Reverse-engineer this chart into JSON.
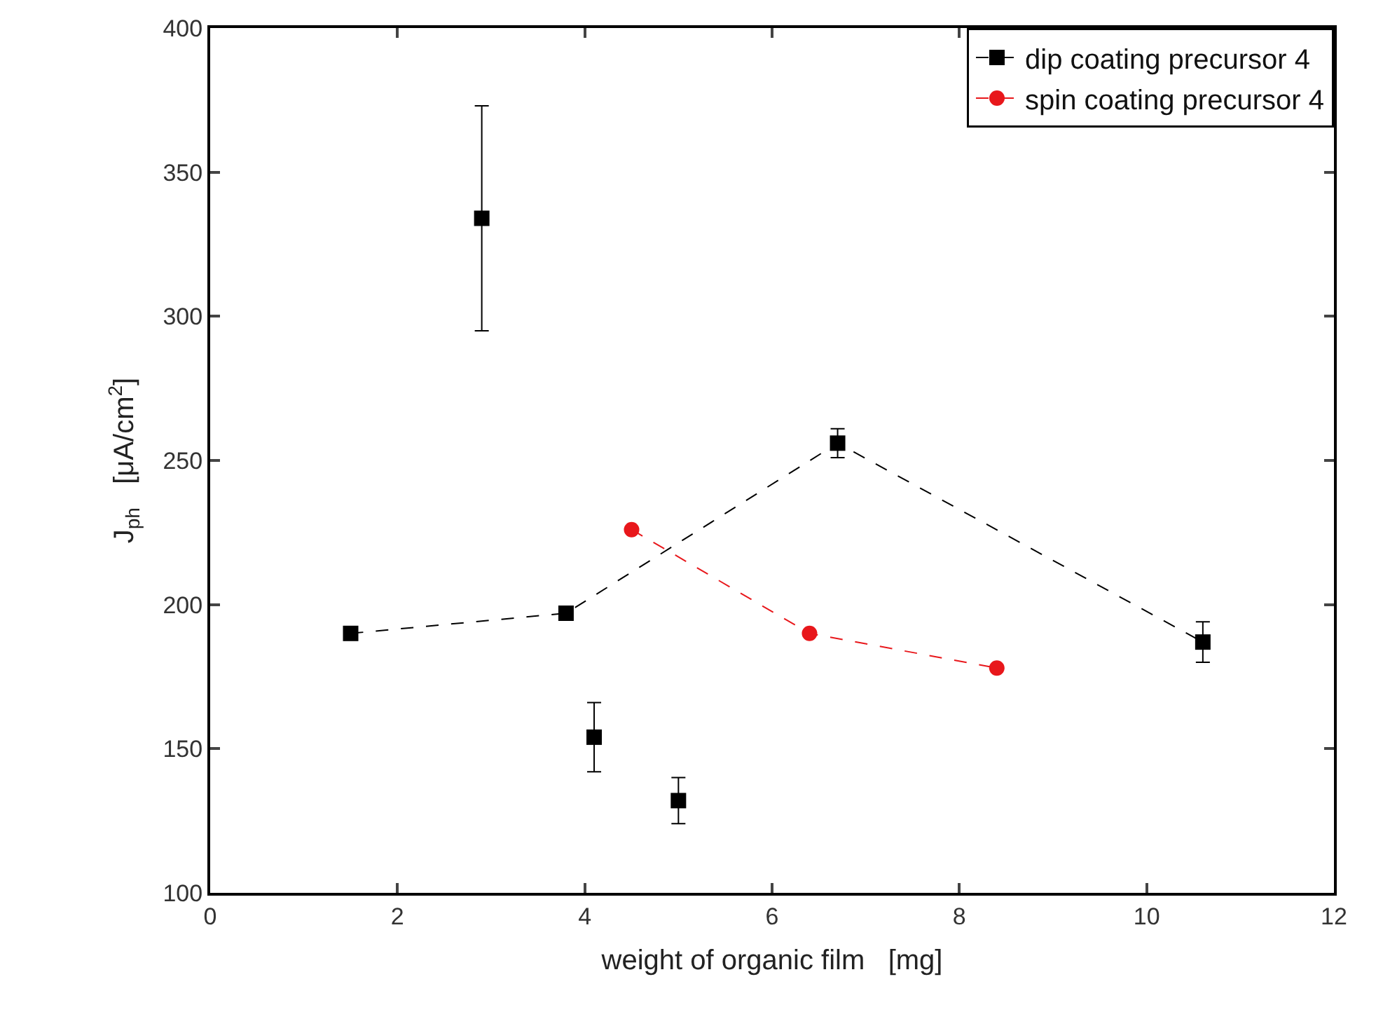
{
  "chart_data": {
    "type": "line",
    "xlabel": "weight of organic film   [mg]",
    "ylabel": "J$_{ph}$   [μA/cm$^{2}$]",
    "xlim": [
      0,
      12
    ],
    "xticks": [
      0,
      2,
      4,
      6,
      8,
      10,
      12
    ],
    "ylim": [
      100,
      400
    ],
    "yticks": [
      100,
      150,
      200,
      250,
      300,
      350,
      400
    ],
    "grid": false,
    "legend": "top right",
    "series": [
      {
        "name": "dip coating precursor 4",
        "color": "#000000",
        "marker": "square",
        "line_style": "dashed",
        "x": [
          1.5,
          3.8,
          6.7,
          10.6
        ],
        "values": [
          190,
          197,
          256,
          187
        ],
        "errors": [
          null,
          null,
          5,
          7
        ]
      },
      {
        "type": "scatter",
        "color": "#000000",
        "marker": "square",
        "x": [
          2.9,
          4.1,
          5.0
        ],
        "values": [
          334,
          154,
          132
        ],
        "errors": [
          39,
          12,
          8
        ]
      },
      {
        "name": "spin coating precursor 4",
        "color": "#e8171b",
        "marker": "circle",
        "line_style": "dashed",
        "x": [
          4.5,
          6.4,
          8.4
        ],
        "values": [
          226,
          190,
          178
        ]
      }
    ]
  }
}
